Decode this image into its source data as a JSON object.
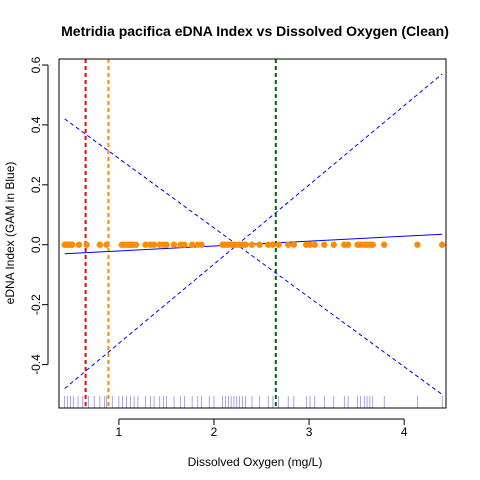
{
  "chart_data": {
    "type": "scatter",
    "title": "Metridia pacifica eDNA Index vs Dissolved Oxygen (Clean)",
    "xlabel": "Dissolved Oxygen (mg/L)",
    "ylabel": "eDNA Index (GAM in Blue)",
    "xlim": [
      0.37,
      4.44
    ],
    "ylim": [
      -0.545,
      0.62
    ],
    "x_ticks": [
      1,
      2,
      3,
      4
    ],
    "y_ticks": [
      -0.4,
      -0.2,
      0.0,
      0.2,
      0.4,
      0.6
    ],
    "x_tick_labels": [
      "1",
      "2",
      "3",
      "4"
    ],
    "y_tick_labels": [
      "-0.4",
      "-0.2",
      "0.0",
      "0.2",
      "0.4",
      "0.6"
    ],
    "colors": {
      "points": "#ff8c00",
      "gam": "#0000ff",
      "rug": "#0000ff",
      "vline_red": "#ff0000",
      "vline_orange": "#ff8c00",
      "vline_green": "#006400"
    },
    "points": {
      "x": [
        0.43,
        0.45,
        0.47,
        0.49,
        0.51,
        0.58,
        0.66,
        0.8,
        0.87,
        1.03,
        1.06,
        1.09,
        1.11,
        1.13,
        1.15,
        1.18,
        1.28,
        1.33,
        1.37,
        1.43,
        1.47,
        1.5,
        1.58,
        1.65,
        1.69,
        1.77,
        1.83,
        1.87,
        2.09,
        2.12,
        2.15,
        2.18,
        2.21,
        2.24,
        2.27,
        2.3,
        2.33,
        2.4,
        2.48,
        2.57,
        2.62,
        2.68,
        2.78,
        2.84,
        2.97,
        3.01,
        3.06,
        3.16,
        3.26,
        3.37,
        3.41,
        3.51,
        3.54,
        3.58,
        3.61,
        3.64,
        3.67,
        3.79,
        4.14,
        4.4
      ],
      "y": [
        0.0,
        0.0,
        0.0,
        0.0,
        0.0,
        0.0,
        0.0,
        0.0,
        0.0,
        0.0,
        0.0,
        0.0,
        0.0,
        0.0,
        0.0,
        0.0,
        0.0,
        0.0,
        0.0,
        0.0,
        0.0,
        0.0,
        0.0,
        0.0,
        0.0,
        0.0,
        0.0,
        0.0,
        0.0,
        0.0,
        0.0,
        0.0,
        0.0,
        0.0,
        0.0,
        0.0,
        0.0,
        0.0,
        0.0,
        0.0,
        0.0,
        0.0,
        0.0,
        0.0,
        0.0,
        0.0,
        0.0,
        0.0,
        0.0,
        0.0,
        0.0,
        0.0,
        0.0,
        0.0,
        0.0,
        0.0,
        0.0,
        0.0,
        0.0,
        0.0
      ]
    },
    "gam_fit": {
      "x": [
        0.43,
        4.4
      ],
      "y": [
        -0.03,
        0.035
      ]
    },
    "ci_upper": {
      "x": [
        0.43,
        4.4
      ],
      "y": [
        -0.48,
        0.57
      ]
    },
    "ci_lower": {
      "x": [
        0.43,
        4.4
      ],
      "y": [
        0.42,
        -0.5
      ]
    },
    "vlines": [
      {
        "x": 0.65,
        "color": "#ff0000"
      },
      {
        "x": 0.89,
        "color": "#ff8c00"
      },
      {
        "x": 2.65,
        "color": "#006400"
      }
    ],
    "rug_x": [
      0.43,
      0.46,
      0.49,
      0.52,
      0.57,
      0.62,
      0.68,
      0.74,
      0.8,
      0.85,
      0.87,
      0.93,
      1.0,
      1.04,
      1.08,
      1.12,
      1.16,
      1.2,
      1.28,
      1.33,
      1.37,
      1.43,
      1.47,
      1.5,
      1.58,
      1.65,
      1.69,
      1.77,
      1.83,
      1.87,
      1.95,
      2.0,
      2.09,
      2.12,
      2.15,
      2.18,
      2.21,
      2.24,
      2.27,
      2.3,
      2.33,
      2.4,
      2.48,
      2.57,
      2.62,
      2.68,
      2.78,
      2.84,
      2.97,
      3.01,
      3.06,
      3.16,
      3.26,
      3.37,
      3.41,
      3.51,
      3.54,
      3.58,
      3.61,
      3.64,
      3.67,
      3.79,
      4.14,
      4.4
    ]
  }
}
